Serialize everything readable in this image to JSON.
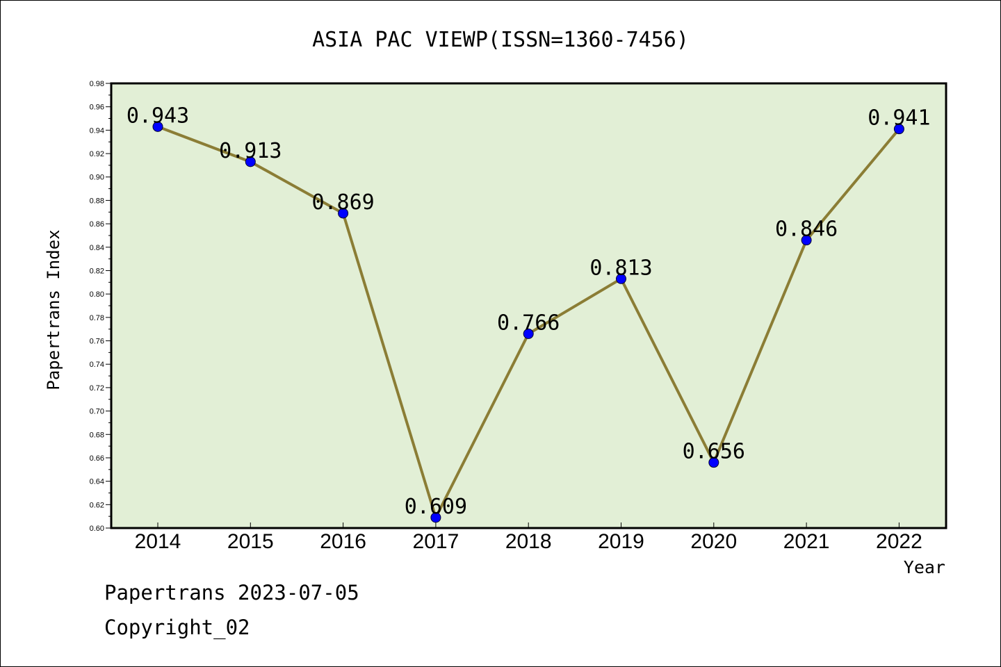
{
  "chart_data": {
    "type": "line",
    "title": "ASIA PAC VIEWP(ISSN=1360-7456)",
    "xlabel": "Year",
    "ylabel": "Papertrans Index",
    "categories": [
      "2014",
      "2015",
      "2016",
      "2017",
      "2018",
      "2019",
      "2020",
      "2021",
      "2022"
    ],
    "values": [
      0.943,
      0.913,
      0.869,
      0.609,
      0.766,
      0.813,
      0.656,
      0.846,
      0.941
    ],
    "value_labels": [
      "0.943",
      "0.913",
      "0.869",
      "0.609",
      "0.766",
      "0.813",
      "0.656",
      "0.846",
      "0.941"
    ],
    "ylim": [
      0.6,
      0.98
    ],
    "yticks": [
      "0.60",
      "0.62",
      "0.64",
      "0.66",
      "0.68",
      "0.70",
      "0.72",
      "0.74",
      "0.76",
      "0.78",
      "0.80",
      "0.82",
      "0.84",
      "0.86",
      "0.88",
      "0.90",
      "0.92",
      "0.94",
      "0.96",
      "0.98"
    ],
    "grid": false,
    "colors": {
      "plot_background": "#e2efd6",
      "line": "#8b7d35",
      "marker": "#0000ff"
    }
  },
  "footer": {
    "source": "Papertrans 2023-07-05",
    "copyright": "Copyright_02"
  }
}
